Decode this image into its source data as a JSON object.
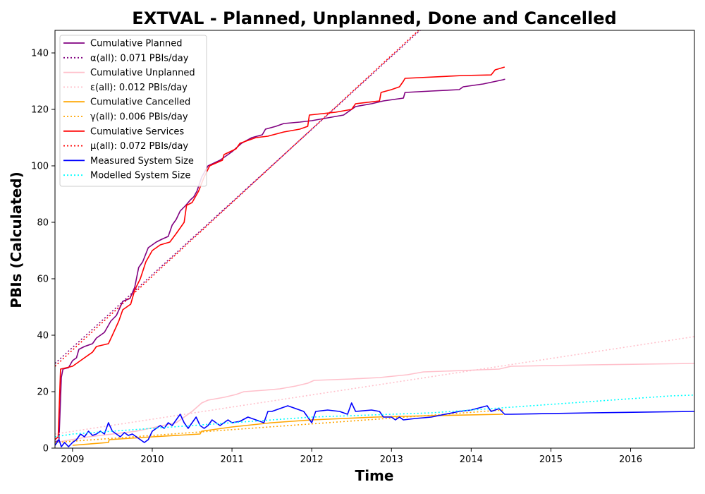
{
  "chart_data": {
    "type": "line",
    "title": "EXTVAL - Planned, Unplanned, Done  and Cancelled",
    "xlabel": "Time",
    "ylabel": "PBIs (Calculated)",
    "xlim": [
      2008.78,
      2016.8
    ],
    "ylim": [
      0,
      148
    ],
    "x_ticks": [
      2009,
      2010,
      2011,
      2012,
      2013,
      2014,
      2015,
      2016
    ],
    "y_ticks": [
      0,
      20,
      40,
      60,
      80,
      100,
      120,
      140
    ],
    "legend_position": "top-left",
    "series": [
      {
        "name": "Cumulative Planned",
        "color": "#800080",
        "style": "solid",
        "points": [
          [
            2008.78,
            2
          ],
          [
            2008.83,
            3
          ],
          [
            2008.86,
            25
          ],
          [
            2008.88,
            28
          ],
          [
            2008.95,
            28.5
          ],
          [
            2009.0,
            31
          ],
          [
            2009.05,
            32
          ],
          [
            2009.08,
            35
          ],
          [
            2009.15,
            36
          ],
          [
            2009.25,
            37
          ],
          [
            2009.3,
            39
          ],
          [
            2009.4,
            41
          ],
          [
            2009.48,
            45
          ],
          [
            2009.55,
            47
          ],
          [
            2009.63,
            52
          ],
          [
            2009.72,
            53
          ],
          [
            2009.78,
            57
          ],
          [
            2009.83,
            64
          ],
          [
            2009.88,
            66
          ],
          [
            2009.95,
            71
          ],
          [
            2010.05,
            73
          ],
          [
            2010.12,
            74
          ],
          [
            2010.2,
            75
          ],
          [
            2010.25,
            79
          ],
          [
            2010.3,
            81
          ],
          [
            2010.35,
            84
          ],
          [
            2010.42,
            86
          ],
          [
            2010.48,
            88
          ],
          [
            2010.52,
            89
          ],
          [
            2010.56,
            91
          ],
          [
            2010.62,
            96
          ],
          [
            2010.7,
            100
          ],
          [
            2010.85,
            102
          ],
          [
            2011.0,
            105
          ],
          [
            2011.12,
            108
          ],
          [
            2011.25,
            110
          ],
          [
            2011.38,
            111
          ],
          [
            2011.42,
            113
          ],
          [
            2011.55,
            114
          ],
          [
            2011.65,
            115
          ],
          [
            2011.85,
            115.5
          ],
          [
            2012.0,
            116
          ],
          [
            2012.2,
            117
          ],
          [
            2012.4,
            118
          ],
          [
            2012.55,
            121
          ],
          [
            2012.75,
            122
          ],
          [
            2012.9,
            123
          ],
          [
            2013.15,
            124
          ],
          [
            2013.17,
            126
          ],
          [
            2013.5,
            126.5
          ],
          [
            2013.85,
            127
          ],
          [
            2013.9,
            128
          ],
          [
            2014.15,
            129
          ],
          [
            2014.4,
            130.5
          ],
          [
            2014.42,
            130.7
          ],
          [
            2014.42,
            130.8
          ]
        ]
      },
      {
        "name": "α(all): 0.071 PBIs/day",
        "color": "#800080",
        "style": "dotted",
        "points": [
          [
            2008.78,
            30
          ],
          [
            2013.4,
            149
          ]
        ]
      },
      {
        "name": "Cumulative Unplanned",
        "color": "#ffc0cb",
        "style": "solid",
        "points": [
          [
            2008.78,
            2
          ],
          [
            2009.2,
            4
          ],
          [
            2009.8,
            6
          ],
          [
            2010.3,
            9
          ],
          [
            2010.5,
            13
          ],
          [
            2010.62,
            16
          ],
          [
            2010.7,
            17
          ],
          [
            2010.9,
            18
          ],
          [
            2011.05,
            19
          ],
          [
            2011.15,
            20
          ],
          [
            2011.4,
            20.5
          ],
          [
            2011.6,
            21
          ],
          [
            2011.8,
            22
          ],
          [
            2011.95,
            23
          ],
          [
            2012.03,
            24
          ],
          [
            2012.5,
            24.5
          ],
          [
            2012.85,
            25
          ],
          [
            2013.2,
            26
          ],
          [
            2013.4,
            27
          ],
          [
            2013.9,
            27.5
          ],
          [
            2014.35,
            28
          ],
          [
            2014.5,
            29
          ],
          [
            2015.5,
            29.5
          ],
          [
            2016.8,
            30
          ]
        ]
      },
      {
        "name": "ε(all): 0.012 PBIs/day",
        "color": "#ffc0cb",
        "style": "dotted",
        "points": [
          [
            2008.78,
            5
          ],
          [
            2016.8,
            39.5
          ]
        ]
      },
      {
        "name": "Cumulative Cancelled",
        "color": "#ffa500",
        "style": "solid",
        "points": [
          [
            2009.0,
            1
          ],
          [
            2009.45,
            2
          ],
          [
            2009.46,
            3
          ],
          [
            2010.0,
            4
          ],
          [
            2010.6,
            5
          ],
          [
            2010.62,
            6
          ],
          [
            2011.0,
            7.5
          ],
          [
            2011.5,
            9
          ],
          [
            2012.0,
            10
          ],
          [
            2012.8,
            11
          ],
          [
            2013.5,
            11.5
          ],
          [
            2014.4,
            12
          ]
        ]
      },
      {
        "name": "γ(all): 0.006 PBIs/day",
        "color": "#ffa500",
        "style": "dotted",
        "points": [
          [
            2008.78,
            2
          ],
          [
            2014.4,
            13.5
          ]
        ]
      },
      {
        "name": "Cumulative Services",
        "color": "#ff0000",
        "style": "solid",
        "points": [
          [
            2008.78,
            3
          ],
          [
            2008.82,
            4
          ],
          [
            2008.85,
            28
          ],
          [
            2009.0,
            29
          ],
          [
            2009.1,
            31
          ],
          [
            2009.25,
            34
          ],
          [
            2009.3,
            36
          ],
          [
            2009.45,
            37
          ],
          [
            2009.5,
            40
          ],
          [
            2009.58,
            45
          ],
          [
            2009.63,
            49
          ],
          [
            2009.73,
            51
          ],
          [
            2009.78,
            56
          ],
          [
            2009.85,
            60
          ],
          [
            2009.92,
            66
          ],
          [
            2010.0,
            70
          ],
          [
            2010.1,
            72
          ],
          [
            2010.22,
            73
          ],
          [
            2010.3,
            76
          ],
          [
            2010.35,
            78
          ],
          [
            2010.4,
            80
          ],
          [
            2010.43,
            86
          ],
          [
            2010.5,
            87
          ],
          [
            2010.58,
            91
          ],
          [
            2010.65,
            96
          ],
          [
            2010.72,
            100
          ],
          [
            2010.88,
            102
          ],
          [
            2010.9,
            104
          ],
          [
            2011.05,
            106
          ],
          [
            2011.1,
            108
          ],
          [
            2011.3,
            110
          ],
          [
            2011.45,
            110.5
          ],
          [
            2011.65,
            112
          ],
          [
            2011.85,
            113
          ],
          [
            2011.95,
            114
          ],
          [
            2011.97,
            118
          ],
          [
            2012.3,
            119
          ],
          [
            2012.5,
            120
          ],
          [
            2012.55,
            122
          ],
          [
            2012.85,
            123
          ],
          [
            2012.87,
            126
          ],
          [
            2013.0,
            127
          ],
          [
            2013.1,
            128
          ],
          [
            2013.15,
            130
          ],
          [
            2013.17,
            131
          ],
          [
            2013.9,
            132
          ],
          [
            2014.25,
            132.2
          ],
          [
            2014.3,
            134
          ],
          [
            2014.42,
            135
          ]
        ]
      },
      {
        "name": "μ(all): 0.072 PBIs/day",
        "color": "#ff0000",
        "style": "dotted",
        "points": [
          [
            2008.78,
            29
          ],
          [
            2013.38,
            149
          ]
        ]
      },
      {
        "name": "Measured System Size",
        "color": "#0000ff",
        "style": "solid",
        "points": [
          [
            2008.78,
            1
          ],
          [
            2008.83,
            3
          ],
          [
            2008.86,
            0.5
          ],
          [
            2008.9,
            2
          ],
          [
            2008.95,
            0.5
          ],
          [
            2009.0,
            2
          ],
          [
            2009.05,
            3
          ],
          [
            2009.1,
            5
          ],
          [
            2009.15,
            4
          ],
          [
            2009.2,
            6
          ],
          [
            2009.25,
            4.5
          ],
          [
            2009.3,
            5
          ],
          [
            2009.35,
            6
          ],
          [
            2009.4,
            5
          ],
          [
            2009.45,
            9
          ],
          [
            2009.5,
            6
          ],
          [
            2009.55,
            5
          ],
          [
            2009.6,
            4
          ],
          [
            2009.65,
            5.5
          ],
          [
            2009.7,
            4.5
          ],
          [
            2009.75,
            5
          ],
          [
            2009.8,
            4
          ],
          [
            2009.85,
            3
          ],
          [
            2009.9,
            2
          ],
          [
            2009.95,
            3
          ],
          [
            2010.0,
            6
          ],
          [
            2010.05,
            7
          ],
          [
            2010.1,
            8
          ],
          [
            2010.15,
            7
          ],
          [
            2010.2,
            9
          ],
          [
            2010.25,
            8
          ],
          [
            2010.3,
            10
          ],
          [
            2010.35,
            12
          ],
          [
            2010.4,
            9
          ],
          [
            2010.45,
            7
          ],
          [
            2010.5,
            9
          ],
          [
            2010.55,
            11
          ],
          [
            2010.6,
            8
          ],
          [
            2010.65,
            7
          ],
          [
            2010.7,
            8
          ],
          [
            2010.75,
            10
          ],
          [
            2010.8,
            9
          ],
          [
            2010.85,
            8
          ],
          [
            2010.9,
            9
          ],
          [
            2010.95,
            10
          ],
          [
            2011.0,
            9
          ],
          [
            2011.1,
            9.5
          ],
          [
            2011.2,
            11
          ],
          [
            2011.3,
            10
          ],
          [
            2011.4,
            9
          ],
          [
            2011.45,
            13
          ],
          [
            2011.5,
            13
          ],
          [
            2011.6,
            14
          ],
          [
            2011.7,
            15
          ],
          [
            2011.8,
            14
          ],
          [
            2011.9,
            13
          ],
          [
            2012.0,
            9
          ],
          [
            2012.05,
            13
          ],
          [
            2012.2,
            13.5
          ],
          [
            2012.35,
            13
          ],
          [
            2012.45,
            12
          ],
          [
            2012.5,
            16
          ],
          [
            2012.55,
            13
          ],
          [
            2012.75,
            13.5
          ],
          [
            2012.85,
            13
          ],
          [
            2012.9,
            11
          ],
          [
            2013.0,
            11
          ],
          [
            2013.05,
            10
          ],
          [
            2013.1,
            11
          ],
          [
            2013.15,
            10
          ],
          [
            2013.3,
            10.5
          ],
          [
            2013.5,
            11
          ],
          [
            2013.85,
            13
          ],
          [
            2014.0,
            13.5
          ],
          [
            2014.2,
            15
          ],
          [
            2014.25,
            13
          ],
          [
            2014.35,
            14
          ],
          [
            2014.42,
            12
          ],
          [
            2014.5,
            12
          ],
          [
            2015.5,
            12.5
          ],
          [
            2016.8,
            13
          ]
        ]
      },
      {
        "name": "Modelled System Size",
        "color": "#00ffff",
        "style": "dotted",
        "points": [
          [
            2008.78,
            4
          ],
          [
            2009.0,
            5
          ],
          [
            2009.5,
            6
          ],
          [
            2010.0,
            7
          ],
          [
            2010.5,
            8
          ],
          [
            2011.0,
            9
          ],
          [
            2011.5,
            10
          ],
          [
            2012.0,
            11
          ],
          [
            2012.5,
            11.5
          ],
          [
            2013.0,
            12
          ],
          [
            2013.5,
            12.5
          ],
          [
            2014.0,
            13.5
          ],
          [
            2014.5,
            14.5
          ],
          [
            2015.0,
            15.5
          ],
          [
            2015.5,
            16.5
          ],
          [
            2016.0,
            17.5
          ],
          [
            2016.5,
            18.5
          ],
          [
            2016.8,
            18.8
          ]
        ]
      }
    ]
  }
}
